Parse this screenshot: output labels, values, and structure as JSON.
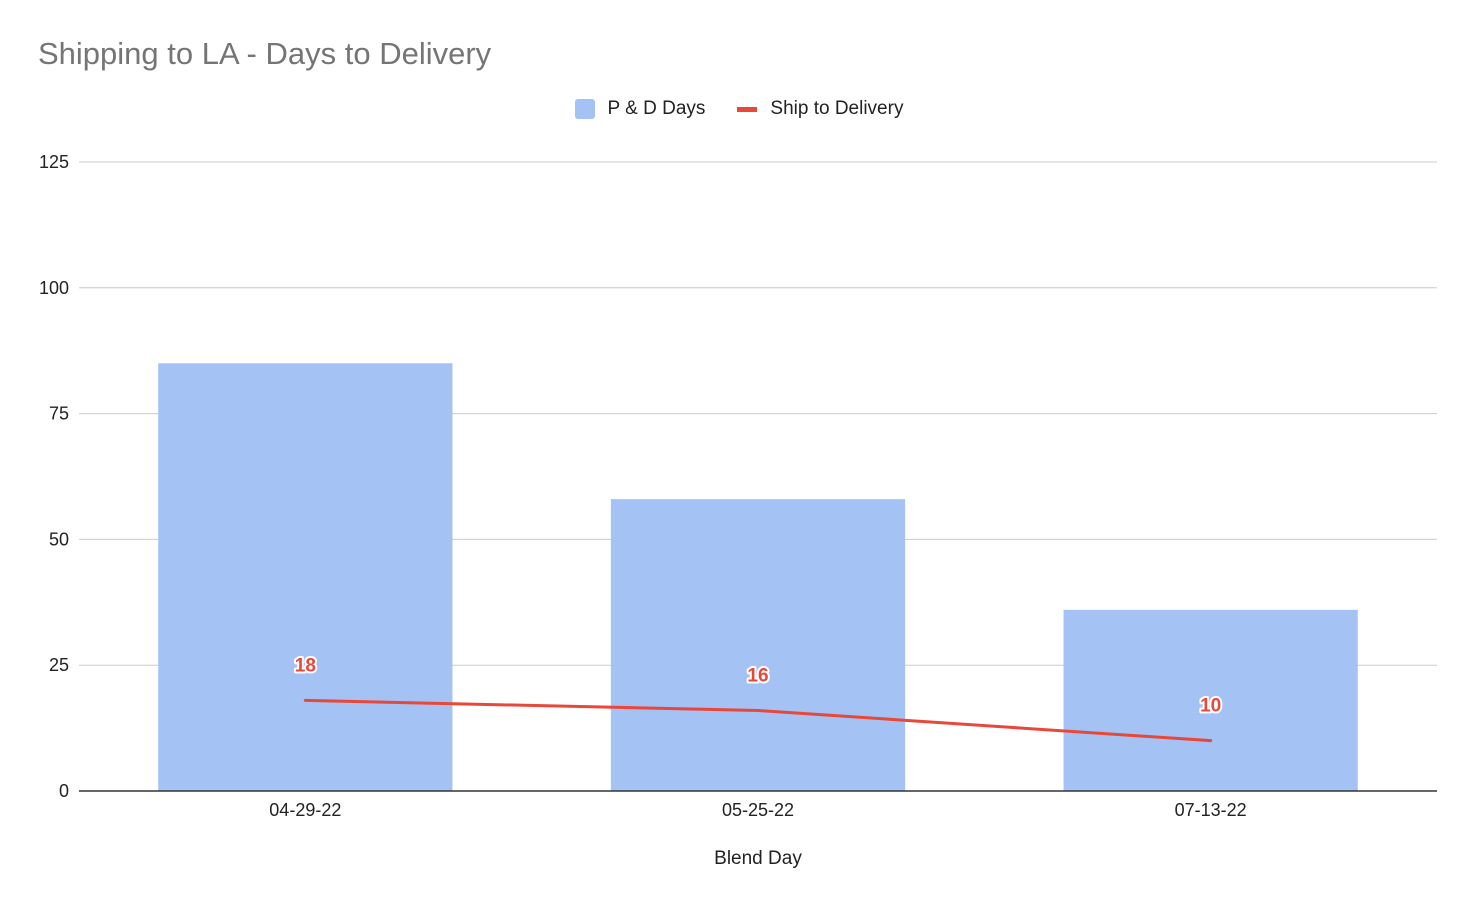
{
  "chart_data": {
    "type": "bar",
    "title": "Shipping to LA - Days to Delivery",
    "xlabel": "Blend Day",
    "ylabel": "",
    "categories": [
      "04-29-22",
      "05-25-22",
      "07-13-22"
    ],
    "series": [
      {
        "name": "P & D Days",
        "type": "bar",
        "color": "#a4c2f4",
        "values": [
          85,
          58,
          36
        ]
      },
      {
        "name": "Ship to Delivery",
        "type": "line",
        "color": "#e8483a",
        "values": [
          18,
          16,
          10
        ],
        "data_labels": [
          "18",
          "16",
          "10"
        ]
      }
    ],
    "ylim": [
      0,
      125
    ],
    "yticks": [
      "0",
      "25",
      "50",
      "75",
      "100",
      "125"
    ],
    "grid": true,
    "legend": "top"
  }
}
